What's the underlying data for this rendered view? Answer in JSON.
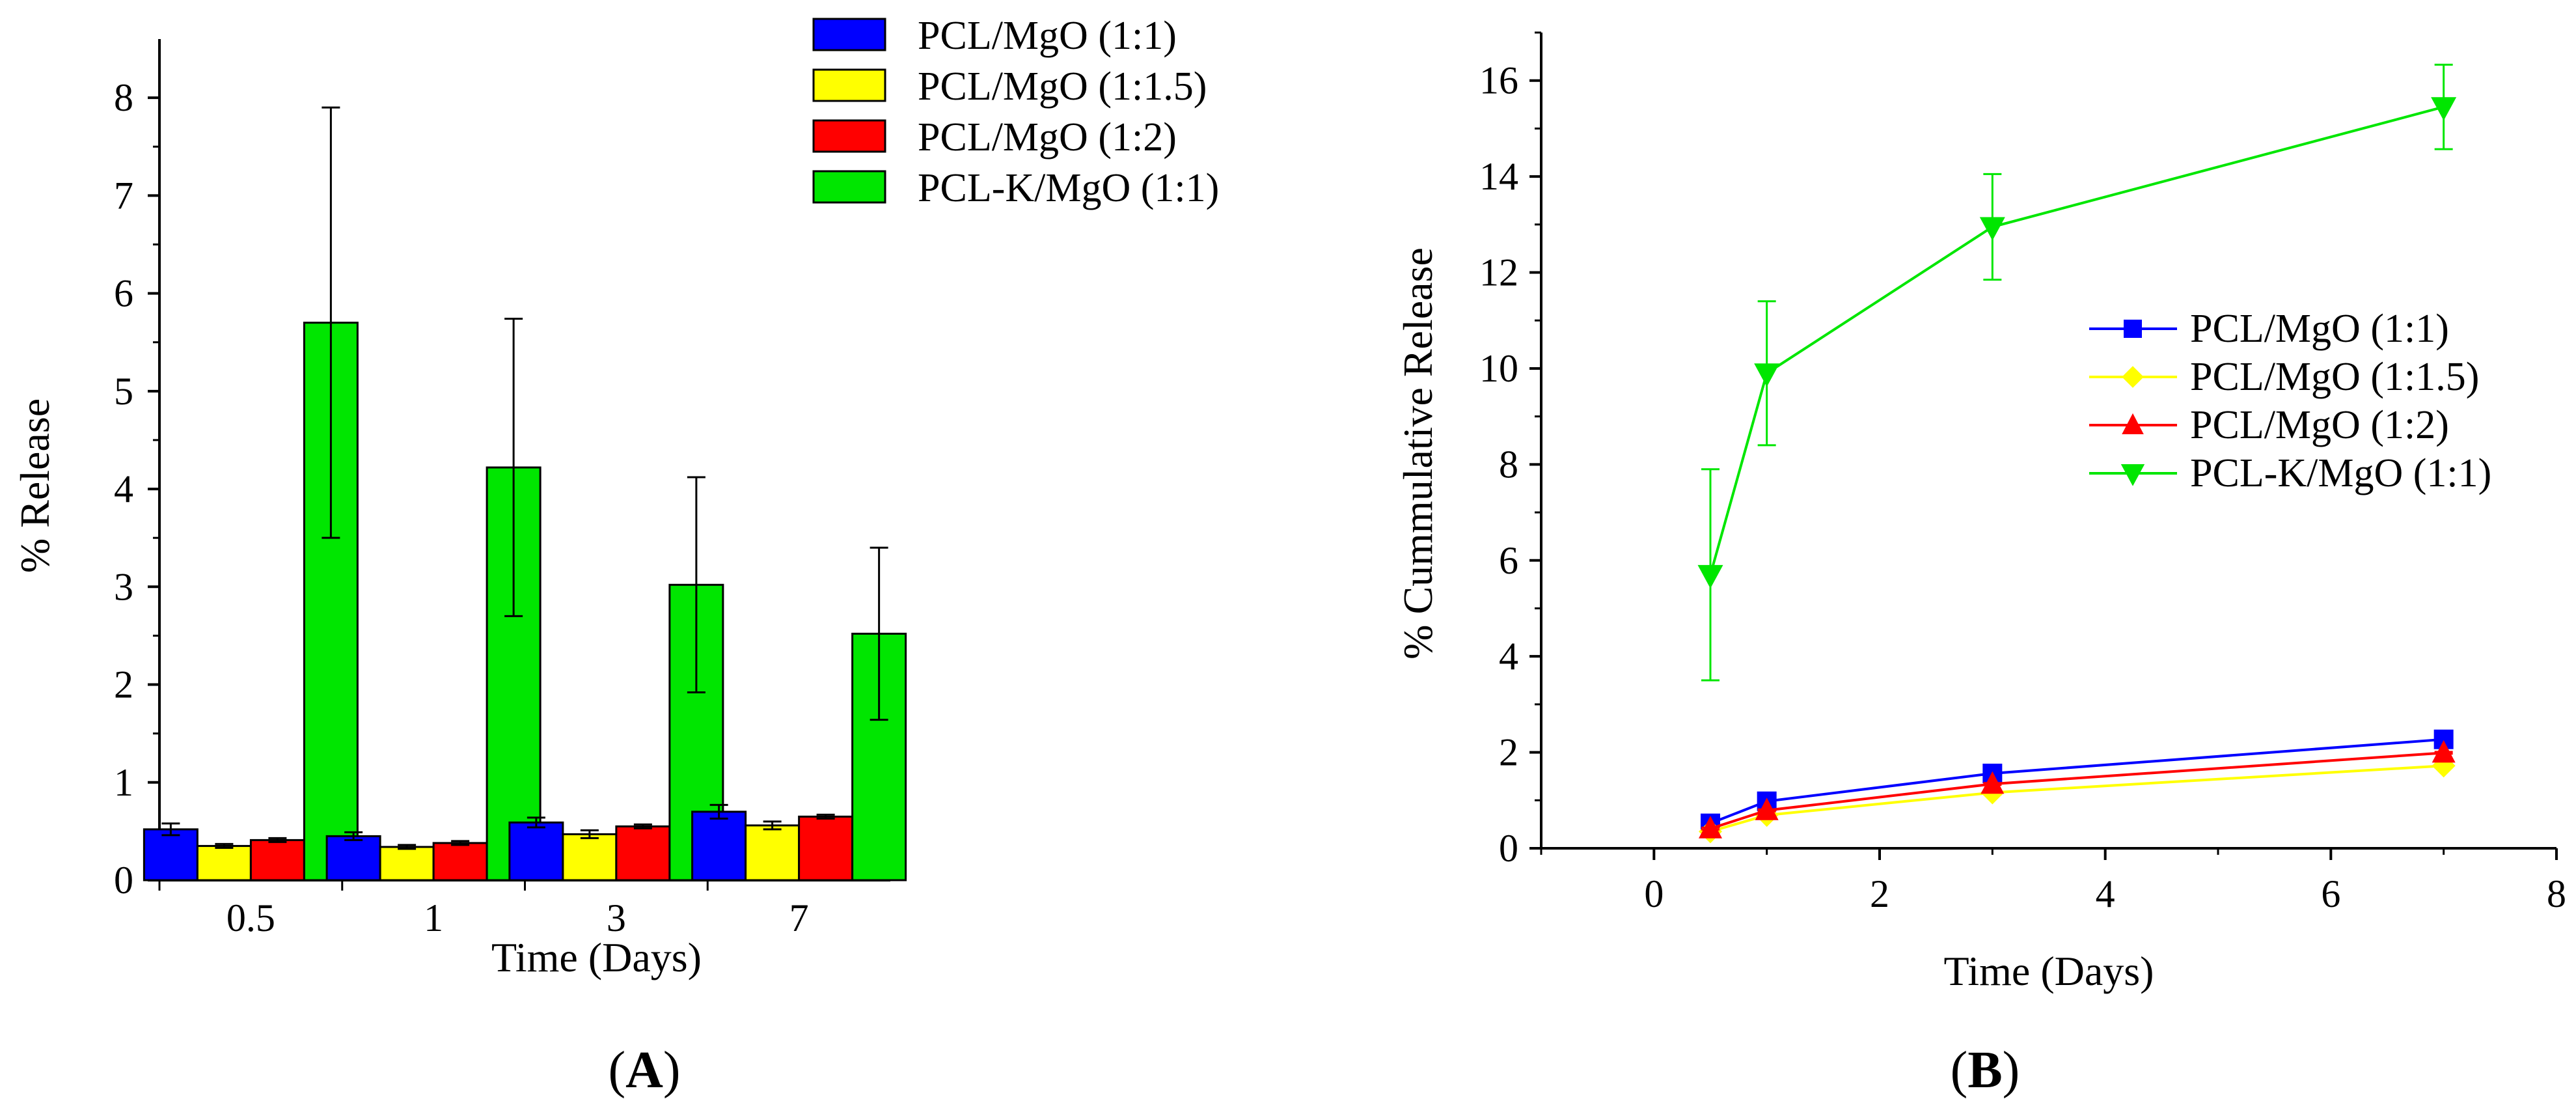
{
  "chart_data": [
    {
      "panel_label": "A",
      "type": "bar",
      "xlabel": "Time (Days)",
      "ylabel": "% Release",
      "ylim": [
        0,
        8.6
      ],
      "yticks": [
        0,
        1,
        2,
        3,
        4,
        5,
        6,
        7,
        8
      ],
      "categories": [
        "0.5",
        "1",
        "3",
        "7"
      ],
      "legend_position": "top-right",
      "series": [
        {
          "name": "PCL/MgO (1:1)",
          "color": "#0000ff",
          "values": [
            0.52,
            0.45,
            0.59,
            0.7
          ],
          "errors": [
            0.06,
            0.04,
            0.05,
            0.07
          ]
        },
        {
          "name": "PCL/MgO (1:1.5)",
          "color": "#ffff00",
          "values": [
            0.35,
            0.34,
            0.47,
            0.56
          ],
          "errors": [
            0.02,
            0.02,
            0.04,
            0.04
          ]
        },
        {
          "name": "PCL/MgO (1:2)",
          "color": "#ff0000",
          "values": [
            0.41,
            0.38,
            0.55,
            0.65
          ],
          "errors": [
            0.02,
            0.02,
            0.02,
            0.02
          ]
        },
        {
          "name": "PCL-K/MgO (1:1)",
          "color": "#00e600",
          "values": [
            5.7,
            4.22,
            3.02,
            2.52
          ],
          "errors": [
            2.2,
            1.52,
            1.1,
            0.88
          ]
        }
      ]
    },
    {
      "panel_label": "B",
      "type": "line",
      "xlabel": "Time (Days)",
      "ylabel": "% Cummulative Release",
      "xlim": [
        -1,
        8
      ],
      "ylim": [
        0,
        17
      ],
      "xticks": [
        0,
        2,
        4,
        6,
        8
      ],
      "yticks": [
        0,
        2,
        4,
        6,
        8,
        10,
        12,
        14,
        16
      ],
      "legend_position": "right",
      "series": [
        {
          "name": "PCL/MgO (1:1)",
          "color": "#0000ff",
          "marker": "square",
          "x": [
            0.5,
            1,
            3,
            7
          ],
          "y": [
            0.52,
            0.98,
            1.56,
            2.27
          ],
          "errors": [
            0.06,
            0.04,
            0.05,
            0.07
          ]
        },
        {
          "name": "PCL/MgO (1:1.5)",
          "color": "#ffff00",
          "marker": "diamond",
          "x": [
            0.5,
            1,
            3,
            7
          ],
          "y": [
            0.35,
            0.69,
            1.16,
            1.72
          ],
          "errors": [
            0.02,
            0.02,
            0.04,
            0.04
          ]
        },
        {
          "name": "PCL/MgO (1:2)",
          "color": "#ff0000",
          "marker": "triangle-up",
          "x": [
            0.5,
            1,
            3,
            7
          ],
          "y": [
            0.41,
            0.79,
            1.34,
            1.99
          ],
          "errors": [
            0.02,
            0.02,
            0.02,
            0.02
          ]
        },
        {
          "name": "PCL-K/MgO (1:1)",
          "color": "#00e600",
          "marker": "triangle-down",
          "x": [
            0.5,
            1,
            3,
            7
          ],
          "y": [
            5.7,
            9.9,
            12.95,
            15.45
          ],
          "errors": [
            2.2,
            1.5,
            1.1,
            0.88
          ]
        }
      ]
    }
  ]
}
